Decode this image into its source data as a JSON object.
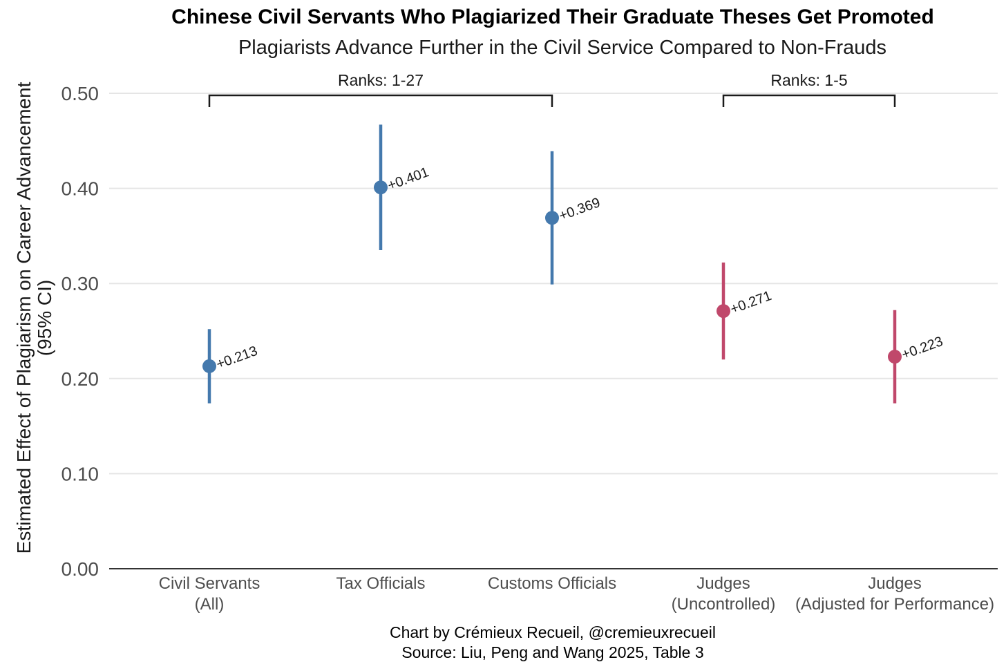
{
  "chart_data": {
    "type": "pointrange",
    "title": "Chinese Civil Servants Who Plagiarized Their Graduate Theses Get Promoted",
    "subtitle": "Plagiarists Advance Further in the Civil Service Compared to Non-Frauds",
    "ylabel_line1": "Estimated Effect of Plagiarism on Career Advancement",
    "ylabel_line2": "(95% CI)",
    "xlabel": "",
    "ylim": [
      0,
      0.5
    ],
    "yticks": [
      {
        "value": 0.0,
        "label": "0.00"
      },
      {
        "value": 0.1,
        "label": "0.10"
      },
      {
        "value": 0.2,
        "label": "0.20"
      },
      {
        "value": 0.3,
        "label": "0.30"
      },
      {
        "value": 0.4,
        "label": "0.40"
      },
      {
        "value": 0.5,
        "label": "0.50"
      }
    ],
    "grid": true,
    "points": [
      {
        "category_line1": "Civil Servants",
        "category_line2": "(All)",
        "estimate": 0.213,
        "ci_low": 0.174,
        "ci_high": 0.252,
        "label": "+0.213",
        "group": "Ranks: 1-27",
        "color": "#4479ad"
      },
      {
        "category_line1": "Tax Officials",
        "category_line2": "",
        "estimate": 0.401,
        "ci_low": 0.335,
        "ci_high": 0.467,
        "label": "+0.401",
        "group": "Ranks: 1-27",
        "color": "#4479ad"
      },
      {
        "category_line1": "Customs Officials",
        "category_line2": "",
        "estimate": 0.369,
        "ci_low": 0.299,
        "ci_high": 0.439,
        "label": "+0.369",
        "group": "Ranks: 1-27",
        "color": "#4479ad"
      },
      {
        "category_line1": "Judges",
        "category_line2": "(Uncontrolled)",
        "estimate": 0.271,
        "ci_low": 0.22,
        "ci_high": 0.322,
        "label": "+0.271",
        "group": "Ranks: 1-5",
        "color": "#c0486b"
      },
      {
        "category_line1": "Judges",
        "category_line2": "(Adjusted for Performance)",
        "estimate": 0.223,
        "ci_low": 0.174,
        "ci_high": 0.272,
        "label": "+0.223",
        "group": "Ranks: 1-5",
        "color": "#c0486b"
      }
    ],
    "brackets": [
      {
        "label": "Ranks: 1-27",
        "from_index": 0,
        "to_index": 2,
        "value": 0.5
      },
      {
        "label": "Ranks: 1-5",
        "from_index": 3,
        "to_index": 4,
        "value": 0.5
      }
    ],
    "caption_line1": "Chart by Crémieux Recueil, @cremieuxrecueil",
    "caption_line2": "Source: Liu, Peng and Wang 2025, Table 3"
  }
}
